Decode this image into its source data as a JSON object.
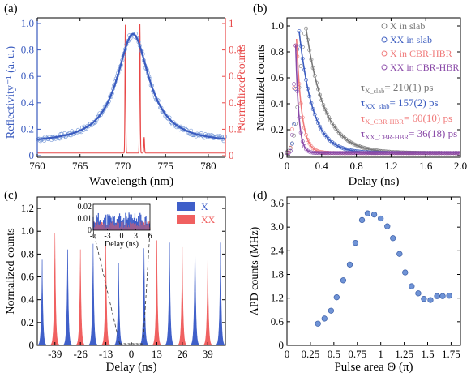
{
  "colors": {
    "blue": "#3a5bbf",
    "blue_fill": "#3f5fc9",
    "red": "#e84848",
    "red_fill": "#f06060",
    "pink": "#f07a7a",
    "grey": "#777777",
    "purple": "#8a4aa8",
    "scatter": "#6f93d6",
    "axis": "#000000"
  },
  "chart_data": [
    {
      "panel": "a",
      "panel_label": "(a)",
      "type": "line",
      "xlabel": "Wavelength (nm)",
      "ylabel_left": "Reflectivity⁻¹ (a. u.)",
      "ylabel_right": "Normalized counts",
      "xlim": [
        760,
        782
      ],
      "xticks": [
        760,
        765,
        770,
        775,
        780
      ],
      "ylim": [
        0,
        1.0
      ],
      "yticks_left": [
        "0",
        "0.2",
        "0.4",
        "0.6",
        "0.8",
        "1.0"
      ],
      "yticks_right": [
        "0",
        "0.2",
        "0.4",
        "0.6",
        "0.8",
        "1"
      ],
      "yticks": [
        0,
        0.2,
        0.4,
        0.6,
        0.8,
        1.0
      ],
      "lorentz_fit": {
        "center": 771.2,
        "fwhm": 4.6,
        "base": 0.09,
        "peak": 0.92
      },
      "emission_lines": [
        {
          "x": 770.3,
          "y": 0.97
        },
        {
          "x": 772.0,
          "y": 0.98
        },
        {
          "x": 772.5,
          "y": 0.12
        }
      ],
      "emission_background": 0.02,
      "grid": false
    },
    {
      "panel": "b",
      "panel_label": "(b)",
      "type": "line",
      "xlabel": "Delay (ns)",
      "ylabel": "Normalized counts",
      "xlim": [
        0,
        2.0
      ],
      "xticks": [
        "0",
        "0.4",
        "0.8",
        "1.2",
        "1.6",
        "2.0"
      ],
      "xtick_values": [
        0,
        0.4,
        0.8,
        1.2,
        1.6,
        2.0
      ],
      "ylim": [
        0,
        1.05
      ],
      "yticks": [
        "0",
        "0.2",
        "0.4",
        "0.6",
        "0.8",
        "1.0"
      ],
      "ytick_values": [
        0,
        0.2,
        0.4,
        0.6,
        0.8,
        1.0
      ],
      "legend_position": "top-right",
      "series": [
        {
          "name": "X in slab",
          "color_key": "grey",
          "onset": 0.22,
          "rise": 0.1,
          "tau": 0.21,
          "peak": 0.98
        },
        {
          "name": "XX in slab",
          "color_key": "blue",
          "onset": 0.14,
          "rise": 0.05,
          "tau": 0.157,
          "peak": 0.96
        },
        {
          "name": "X in CBR-HBR",
          "color_key": "pink",
          "onset": 0.11,
          "rise": 0.04,
          "tau": 0.06,
          "peak": 0.9
        },
        {
          "name": "XX in CBR-HBR",
          "color_key": "purple",
          "onset": 0.1,
          "rise": 0.03,
          "tau": 0.036,
          "peak": 0.85
        }
      ],
      "annotations": [
        {
          "sym": "τ",
          "sub": "X_slab",
          "val": "= 210(1) ps",
          "color_key": "grey"
        },
        {
          "sym": "τ",
          "sub": "XX_slab",
          "val": "= 157(2) ps",
          "color_key": "blue"
        },
        {
          "sym": "τ",
          "sub": "X_CBR-HBR",
          "val": "= 60(10) ps",
          "color_key": "pink"
        },
        {
          "sym": "τ",
          "sub": "XX_CBR-HBR",
          "val": "= 36(18) ps",
          "color_key": "purple"
        }
      ]
    },
    {
      "panel": "c",
      "panel_label": "(c)",
      "type": "bar",
      "xlabel": "Delay (ns)",
      "ylabel": "Normalized counts",
      "xlim": [
        -48,
        48
      ],
      "xticks": [
        "-39",
        "-26",
        "-13",
        "0",
        "13",
        "26",
        "39"
      ],
      "xtick_values": [
        -39,
        -26,
        -13,
        0,
        13,
        26,
        39
      ],
      "ylim": [
        0,
        1.3
      ],
      "yticks": [
        "0",
        "0.2",
        "0.4",
        "0.6",
        "0.8",
        "1.0",
        "1.2"
      ],
      "ytick_values": [
        0,
        0.2,
        0.4,
        0.6,
        0.8,
        1.0,
        1.2
      ],
      "legend": [
        "X",
        "XX"
      ],
      "legend_position": "top-right",
      "series": [
        {
          "name": "X",
          "color_key": "blue_fill",
          "peaks_x": [
            -45.5,
            -32.5,
            -19.5,
            -6.5,
            6.5,
            19.5,
            32.5,
            45.5
          ],
          "peaks_y": [
            0.75,
            0.84,
            0.89,
            0.72,
            0.85,
            0.9,
            0.97,
            0.9
          ]
        },
        {
          "name": "XX",
          "color_key": "red_fill",
          "peaks_x": [
            -39,
            -26,
            -13,
            13,
            26,
            39
          ],
          "peaks_y": [
            0.98,
            0.84,
            0.88,
            0.92,
            0.86,
            0.75
          ]
        }
      ],
      "inset": {
        "xlabel": "Delay (ns)",
        "xlim": [
          -6,
          6
        ],
        "xticks": [
          "-6",
          "-3",
          "0",
          "3",
          "6"
        ],
        "xtick_values": [
          -6,
          -3,
          0,
          3,
          6
        ],
        "ylim": [
          0,
          0.022
        ],
        "yticks": [
          "0",
          "0.01",
          "0.02"
        ],
        "ytick_values": [
          0,
          0.01,
          0.02
        ]
      }
    },
    {
      "panel": "d",
      "panel_label": "(d)",
      "type": "scatter",
      "xlabel": "Pulse area Θ (π)",
      "ylabel": "APD counts (MHz)",
      "xlim": [
        0,
        1.85
      ],
      "xticks": [
        "0",
        "0.25",
        "0.5",
        "0.75",
        "1",
        "1.25",
        "1.5",
        "1.75"
      ],
      "xtick_values": [
        0,
        0.25,
        0.5,
        0.75,
        1.0,
        1.25,
        1.5,
        1.75
      ],
      "ylim": [
        0,
        3.6
      ],
      "yticks": [
        "0",
        "0.6",
        "1.2",
        "1.8",
        "2.4",
        "3.0",
        "3.6"
      ],
      "ytick_values": [
        0,
        0.6,
        1.2,
        1.8,
        2.4,
        3.0,
        3.6
      ],
      "x": [
        0.33,
        0.4,
        0.47,
        0.53,
        0.6,
        0.67,
        0.73,
        0.8,
        0.86,
        0.93,
        1.0,
        1.07,
        1.13,
        1.2,
        1.26,
        1.33,
        1.4,
        1.46,
        1.53,
        1.6,
        1.66,
        1.73
      ],
      "y": [
        0.55,
        0.68,
        0.88,
        1.22,
        1.65,
        2.05,
        2.6,
        3.18,
        3.35,
        3.32,
        3.22,
        3.02,
        2.72,
        2.32,
        1.85,
        1.5,
        1.32,
        1.18,
        1.15,
        1.25,
        1.25,
        1.26
      ]
    }
  ]
}
